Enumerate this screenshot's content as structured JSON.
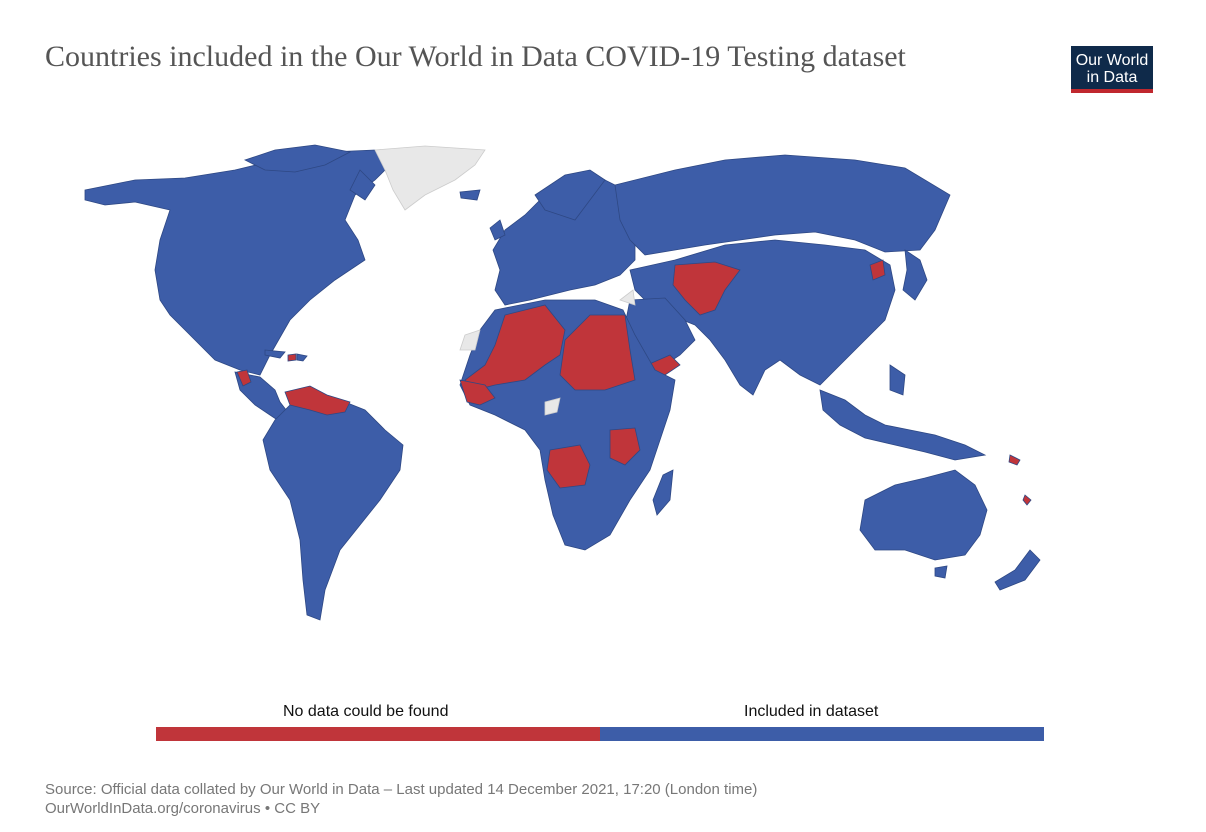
{
  "header": {
    "title": "Countries included in the Our World in Data COVID-19 Testing dataset",
    "logo_line1": "Our World",
    "logo_line2": "in Data"
  },
  "colors": {
    "included": "#3d5da8",
    "no_data": "#c0353a",
    "missing": "#e8e8e8",
    "border": "#2e4884",
    "logo_bg": "#0f2a4a",
    "logo_accent": "#c0282e"
  },
  "legend": {
    "items": [
      {
        "label": "No data could be found",
        "color": "#c0353a"
      },
      {
        "label": "Included in dataset",
        "color": "#3d5da8"
      }
    ]
  },
  "footer": {
    "source_line": "Source: Official data collated by Our World in Data – Last updated 14 December 2021, 17:20 (London time)",
    "link_line": "OurWorldInData.org/coronavirus • CC BY"
  }
}
